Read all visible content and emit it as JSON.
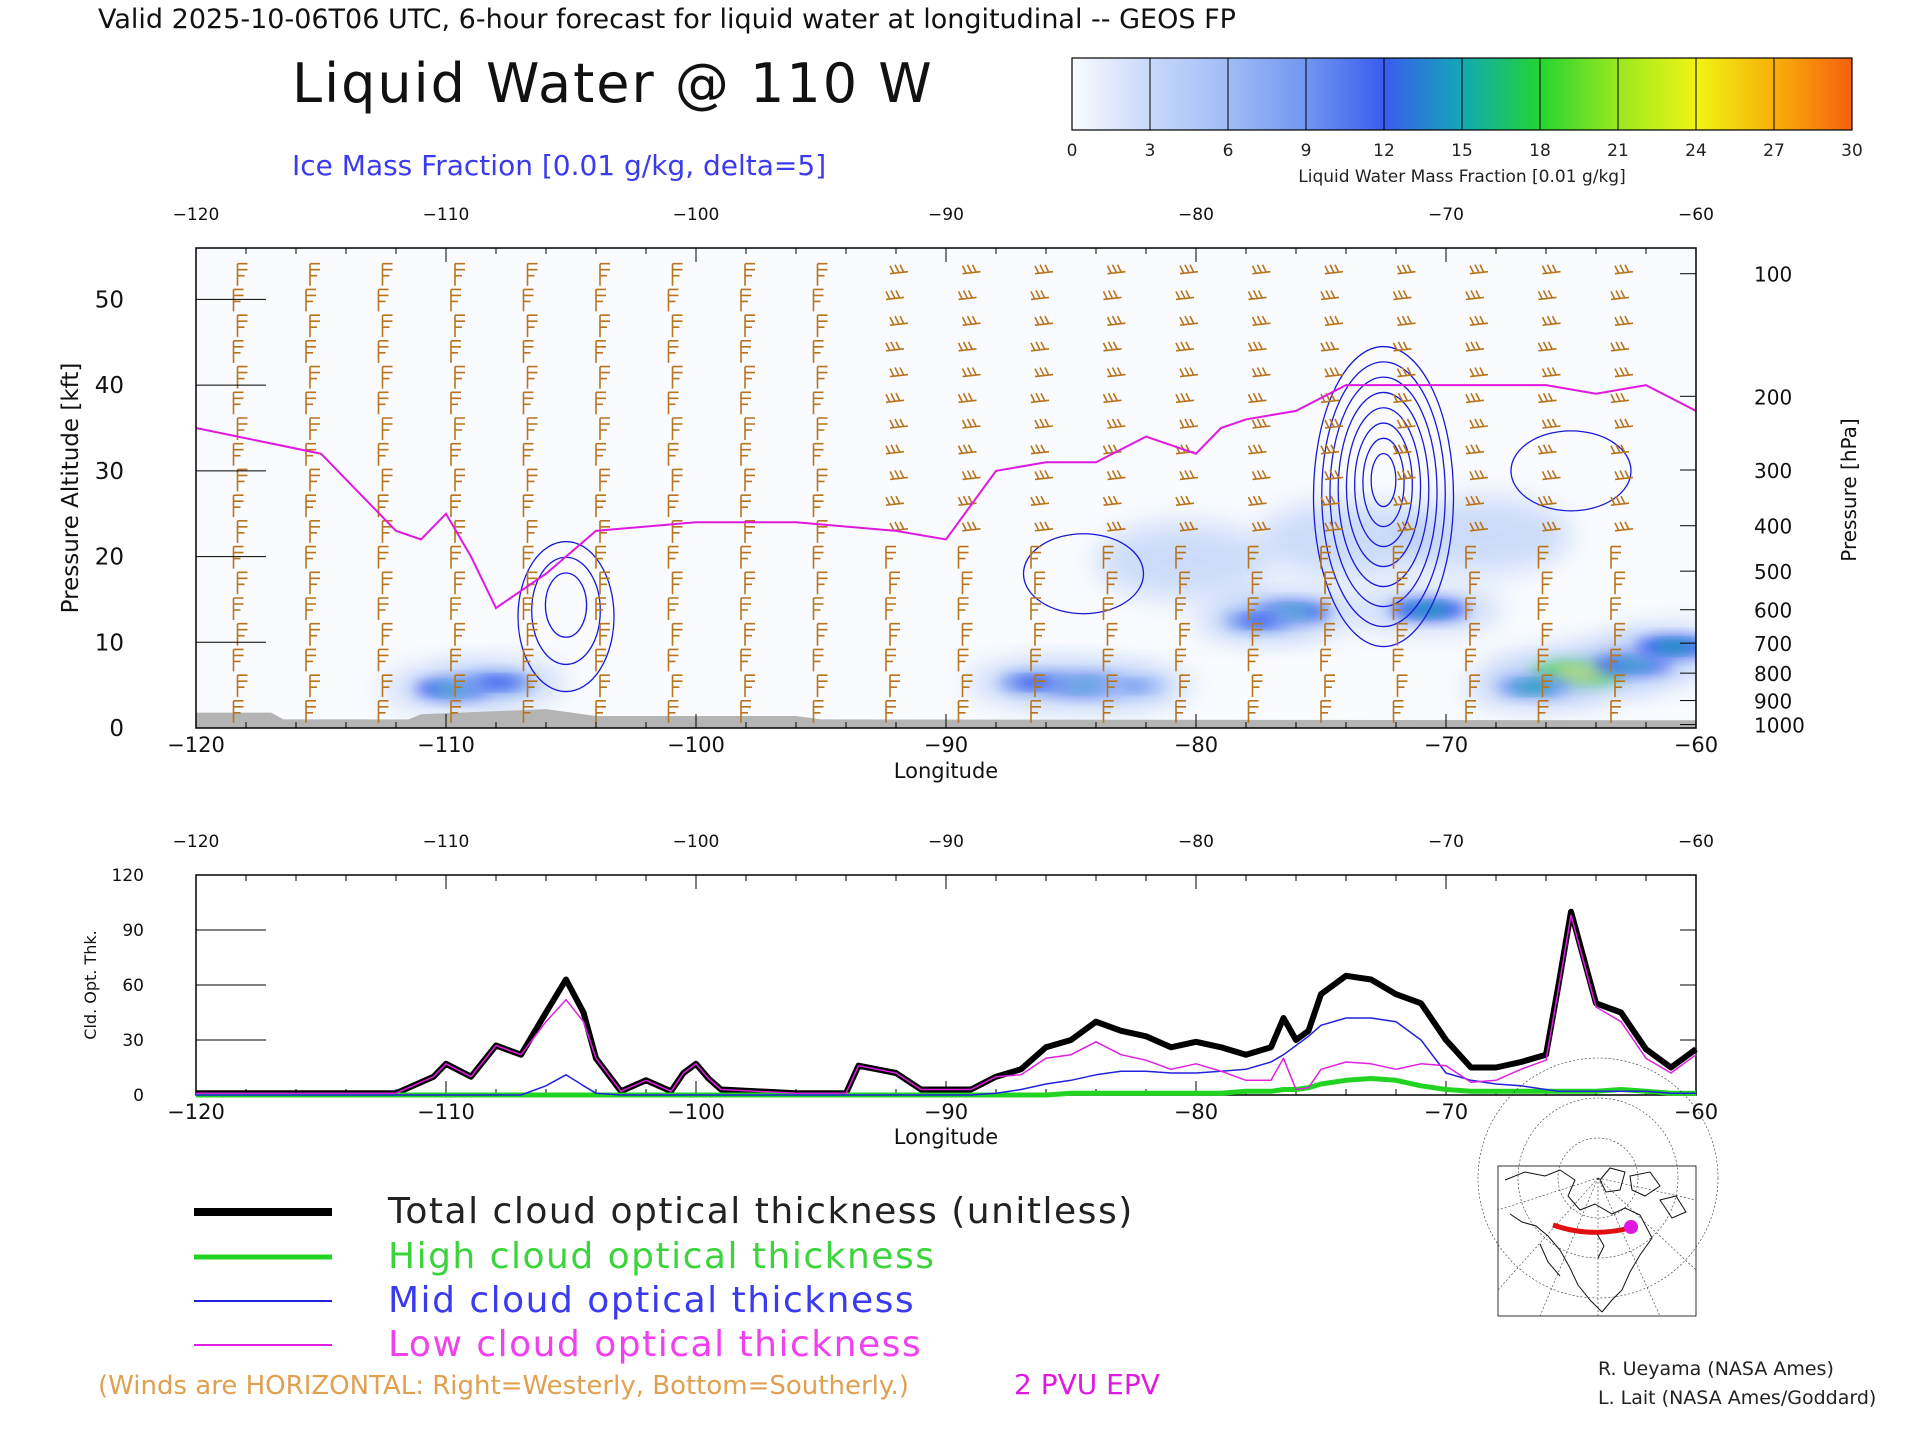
{
  "header": {
    "valid_line": "Valid 2025-10-06T06 UTC, 6-hour forecast for liquid water at longitudinal -- GEOS FP",
    "title": "Liquid Water @ 110 W",
    "subtitle": "Ice Mass Fraction [0.01 g/kg, delta=5]"
  },
  "colorbar": {
    "ticks": [
      "0",
      "3",
      "6",
      "9",
      "12",
      "15",
      "18",
      "21",
      "24",
      "27",
      "30"
    ],
    "label": "Liquid Water Mass Fraction [0.01 g/kg]",
    "colors": [
      "#fafcff",
      "#c8d8fa",
      "#a0bcf6",
      "#7096f0",
      "#3a5cf0",
      "#12a8b4",
      "#24d430",
      "#9ae820",
      "#f0f414",
      "#f8b008",
      "#f66010",
      "#f42010"
    ]
  },
  "colors": {
    "wind": "#b8741c",
    "epv": "#e019e0",
    "ice_contour": "#1a1ad6",
    "total": "#000000",
    "high": "#22d422",
    "mid": "#2222dd",
    "low": "#e020e0",
    "terrain": "#b4b4b4",
    "note": "#e0a050"
  },
  "chart_data": [
    {
      "type": "heatmap",
      "name_label": "Liquid Water @ 110 W",
      "xlabel": "Longitude",
      "ylabel_left": "Pressure Altitude [kft]",
      "ylabel_right": "Pressure [hPa]",
      "xlim": [
        -120,
        -60
      ],
      "ylim": [
        0,
        56
      ],
      "x_ticks": [
        "-120",
        "-110",
        "-100",
        "-90",
        "-80",
        "-70",
        "-60"
      ],
      "y_ticks": [
        "0",
        "10",
        "20",
        "30",
        "40",
        "50"
      ],
      "pressure_ticks": [
        "100",
        "200",
        "300",
        "400",
        "500",
        "600",
        "700",
        "800",
        "900",
        "1000"
      ],
      "pressure_tick_kft": [
        53,
        38.7,
        30.1,
        23.6,
        18.3,
        13.8,
        9.9,
        6.4,
        3.2,
        0.4
      ],
      "liquid_water_blobs": [
        {
          "lon": -109.7,
          "kft": 4.6,
          "value": 16
        },
        {
          "lon": -107.9,
          "kft": 5.3,
          "value": 14
        },
        {
          "lon": -84.5,
          "kft": 5.0,
          "value": 17
        },
        {
          "lon": -86.5,
          "kft": 5.3,
          "value": 13
        },
        {
          "lon": -82.5,
          "kft": 4.9,
          "value": 10
        },
        {
          "lon": -76.2,
          "kft": 13.5,
          "value": 17
        },
        {
          "lon": -77.5,
          "kft": 12.5,
          "value": 12
        },
        {
          "lon": -70.7,
          "kft": 13.8,
          "value": 17
        },
        {
          "lon": -64.7,
          "kft": 6.4,
          "value": 25
        },
        {
          "lon": -62.5,
          "kft": 7.5,
          "value": 17
        },
        {
          "lon": -66.5,
          "kft": 4.8,
          "value": 15
        },
        {
          "lon": -60.9,
          "kft": 9.5,
          "value": 16
        },
        {
          "lon": -80.5,
          "kft": 19.5,
          "value": 3
        },
        {
          "lon": -74.0,
          "kft": 22.0,
          "value": 3
        },
        {
          "lon": -68.5,
          "kft": 22.5,
          "value": 3
        }
      ],
      "epv_2pvu_line": {
        "lon": [
          -120,
          -115,
          -112,
          -111,
          -110,
          -109,
          -108,
          -106,
          -104,
          -100,
          -96,
          -92,
          -90,
          -88,
          -86,
          -84,
          -82,
          -80,
          -79,
          -78,
          -76,
          -74,
          -72,
          -70,
          -68,
          -66,
          -64,
          -62,
          -60
        ],
        "kft": [
          35,
          32,
          23,
          22,
          25,
          20,
          14,
          18,
          23,
          24,
          24,
          23,
          22,
          30,
          31,
          31,
          34,
          32,
          35,
          36,
          37,
          40,
          40,
          40,
          40,
          40,
          39,
          40,
          37
        ]
      },
      "ice_contour_centers": [
        {
          "lon": -105.2,
          "kft": 13,
          "peak": 15
        },
        {
          "lon": -72.5,
          "kft": 27,
          "peak": 40
        },
        {
          "lon": -84.5,
          "kft": 18,
          "peak": 5
        },
        {
          "lon": -65.0,
          "kft": 30,
          "peak": 5
        }
      ]
    },
    {
      "type": "line",
      "xlabel": "Longitude",
      "ylabel": "Cld. Opt. Thk.",
      "xlim": [
        -120,
        -60
      ],
      "ylim": [
        0,
        120
      ],
      "x_ticks": [
        "-120",
        "-110",
        "-100",
        "-90",
        "-80",
        "-70",
        "-60"
      ],
      "y_ticks": [
        "0",
        "30",
        "60",
        "90",
        "120"
      ],
      "x": [
        -120,
        -112,
        -110.5,
        -110,
        -109,
        -108,
        -107,
        -106,
        -105.2,
        -104.5,
        -104,
        -103,
        -102,
        -101,
        -100.5,
        -100,
        -99.5,
        -99,
        -96,
        -94,
        -93.5,
        -92,
        -91,
        -89,
        -88,
        -87,
        -86,
        -85,
        -84,
        -83,
        -82,
        -81,
        -80,
        -79,
        -78,
        -77,
        -76.5,
        -76,
        -75.5,
        -75,
        -74,
        -73,
        -72,
        -71,
        -70,
        -69,
        -68,
        -67,
        -66,
        -65.5,
        -65,
        -64,
        -63,
        -62,
        -61,
        -60
      ],
      "series": [
        {
          "name": "Total cloud optical thickness (unitless)",
          "values": [
            1,
            1,
            10,
            17,
            10,
            27,
            22,
            45,
            63,
            45,
            20,
            2,
            8,
            2,
            12,
            17,
            9,
            3,
            1,
            1,
            16,
            12,
            3,
            3,
            10,
            14,
            26,
            30,
            40,
            35,
            32,
            26,
            29,
            26,
            22,
            26,
            42,
            30,
            35,
            55,
            65,
            63,
            55,
            50,
            30,
            15,
            15,
            18,
            22,
            60,
            100,
            50,
            45,
            25,
            15,
            25
          ]
        },
        {
          "name": "High cloud optical thickness",
          "values": [
            0,
            0,
            0,
            0,
            0,
            0,
            0,
            0,
            0,
            0,
            0,
            0,
            0,
            0,
            0,
            0,
            0,
            0,
            0,
            0,
            0,
            0,
            0,
            0,
            0,
            0,
            0,
            1,
            1,
            1,
            1,
            1,
            1,
            1,
            2,
            2,
            3,
            3,
            4,
            6,
            8,
            9,
            8,
            5,
            3,
            2,
            2,
            2,
            2,
            2,
            2,
            2,
            3,
            2,
            1,
            1
          ]
        },
        {
          "name": "Mid cloud optical thickness",
          "values": [
            0,
            0,
            0,
            0,
            0,
            0,
            0,
            5,
            11,
            5,
            1,
            0,
            0,
            0,
            0,
            0,
            0,
            0,
            0,
            0,
            0,
            0,
            0,
            0,
            1,
            3,
            6,
            8,
            11,
            13,
            13,
            12,
            12,
            13,
            14,
            18,
            22,
            27,
            32,
            38,
            42,
            42,
            40,
            30,
            12,
            8,
            6,
            5,
            3,
            2,
            2,
            2,
            2,
            2,
            1,
            1
          ]
        },
        {
          "name": "Low cloud optical thickness",
          "values": [
            1,
            1,
            10,
            17,
            10,
            27,
            22,
            40,
            52,
            40,
            20,
            2,
            8,
            2,
            12,
            17,
            9,
            3,
            1,
            1,
            16,
            12,
            3,
            3,
            10,
            11,
            20,
            22,
            29,
            22,
            19,
            14,
            17,
            13,
            8,
            8,
            20,
            3,
            4,
            14,
            18,
            17,
            14,
            17,
            16,
            7,
            8,
            14,
            19,
            58,
            98,
            48,
            40,
            20,
            12,
            22
          ]
        }
      ]
    }
  ],
  "legend": {
    "total": "Total cloud optical thickness (unitless)",
    "high": "High cloud optical thickness",
    "mid": "Mid cloud optical thickness",
    "low": "Low cloud optical thickness"
  },
  "footer": {
    "wind_note": "(Winds are HORIZONTAL: Right=Westerly, Bottom=Southerly.)",
    "epv_label": "2 PVU EPV",
    "credit1": "R. Ueyama (NASA Ames)",
    "credit2": "L. Lait (NASA Ames/Goddard)"
  }
}
